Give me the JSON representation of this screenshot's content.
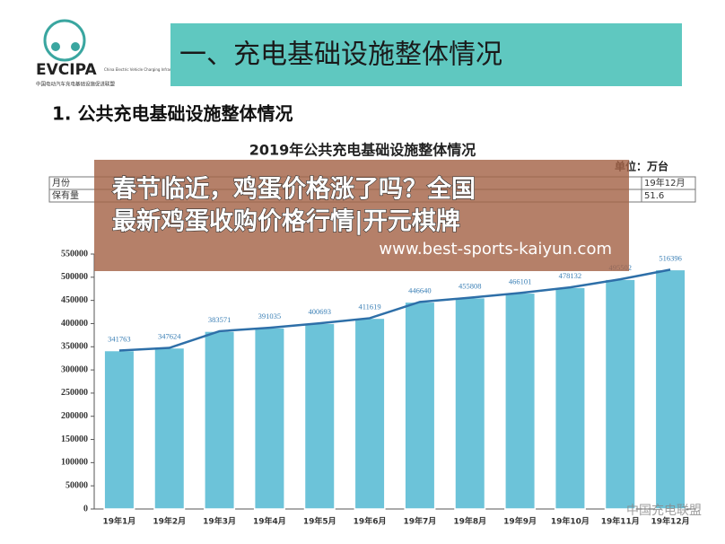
{
  "logo": {
    "name": "EVCIPA",
    "english": "China Electric Vehicle Charging Infrastructure Promotion Alliance",
    "chinese": "中国电动汽车充电基础设施促进联盟"
  },
  "header": {
    "title": "一、充电基础设施整体情况",
    "section": "1. 公共充电基础设施整体情况"
  },
  "table": {
    "unit": "单位：万台",
    "rows": [
      [
        "月份",
        "19年12月"
      ],
      [
        "保有量",
        "51.6"
      ]
    ]
  },
  "overlay": {
    "headline_1": "春节临近，鸡蛋价格涨了吗？全国",
    "headline_2": "最新鸡蛋收购价格行情|开元棋牌",
    "url": "www.best-sports-kaiyun.com"
  },
  "watermark": "中国充电联盟",
  "chart_data": {
    "type": "bar",
    "title": "2019年公共充电基础设施整体情况",
    "categories": [
      "19年1月",
      "19年2月",
      "19年3月",
      "19年4月",
      "19年5月",
      "19年6月",
      "19年7月",
      "19年8月",
      "19年9月",
      "19年10月",
      "19年11月",
      "19年12月"
    ],
    "values": [
      341763,
      347624,
      383571,
      391035,
      400693,
      411619,
      446640,
      455808,
      466101,
      478132,
      495502,
      516396
    ],
    "color": "#6cc3d9",
    "line_color": "#2e6fa8",
    "ylim": [
      0,
      550000
    ],
    "yticks": [
      0,
      50000,
      100000,
      150000,
      200000,
      250000,
      300000,
      350000,
      400000,
      450000,
      500000,
      550000
    ]
  }
}
